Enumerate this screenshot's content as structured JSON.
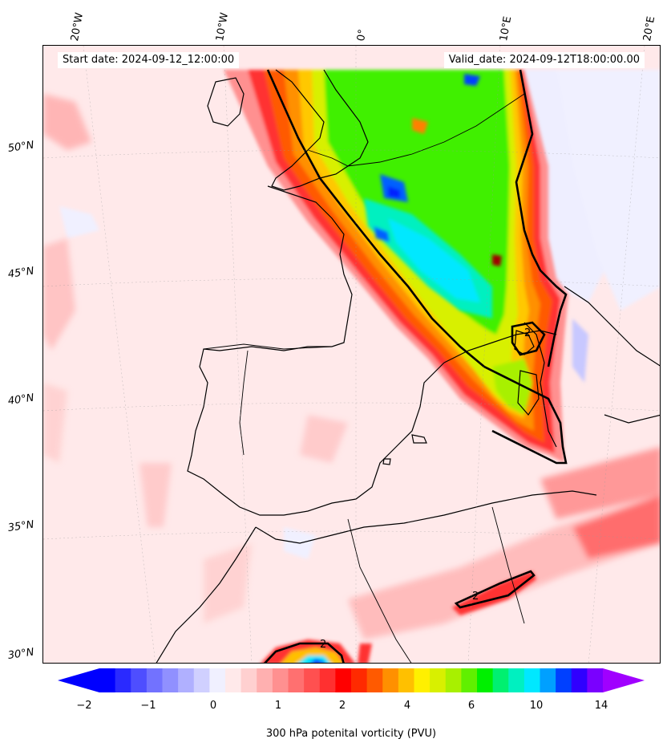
{
  "header": {
    "start_date": "Start date: 2024-09-12_12:00:00",
    "valid_date": "Valid_date: 2024-09-12T18:00:00.00"
  },
  "axes": {
    "longitude_labels": [
      "20°W",
      "10°W",
      "0°",
      "10°E",
      "20°E"
    ],
    "latitude_labels": [
      "50°N",
      "45°N",
      "40°N",
      "35°N",
      "30°N"
    ]
  },
  "contour_labels": [
    "2",
    "2",
    "2"
  ],
  "colorbar": {
    "label": "300 hPa potenital vorticity (PVU)",
    "ticks": [
      "−2",
      "−1",
      "0",
      "1",
      "2",
      "4",
      "6",
      "10",
      "14"
    ],
    "colors": [
      "#0000ff",
      "#2a2aff",
      "#4e4eff",
      "#7272ff",
      "#9090ff",
      "#b0b0ff",
      "#d0d0ff",
      "#f0f0ff",
      "#ffe9ea",
      "#ffd0d0",
      "#ffb0b0",
      "#ff9090",
      "#ff7070",
      "#ff5050",
      "#ff3030",
      "#ff0000",
      "#ff2a00",
      "#ff5a00",
      "#ff9000",
      "#ffc000",
      "#fff000",
      "#d8f000",
      "#a8f000",
      "#60f000",
      "#00f000",
      "#00f070",
      "#00f0c0",
      "#00e8ff",
      "#00a0ff",
      "#0040ff",
      "#3000ff",
      "#7a00ff"
    ],
    "extend_low_color": "#0000ff",
    "extend_high_color": "#a000ff"
  },
  "map_colors": {
    "land_outline": "#000000",
    "background_pv": "#ffe9ea",
    "pv_contour": "#000000"
  }
}
